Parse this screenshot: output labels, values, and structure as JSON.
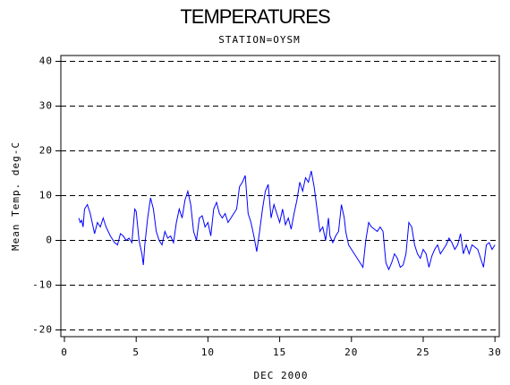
{
  "chart_data": {
    "type": "line",
    "title": "TEMPERATURES",
    "subtitle": "STATION=OYSM",
    "x_label": "DEC 2000",
    "y_label": "Mean Temp. deg-C",
    "xlim": [
      -0.25,
      30.3
    ],
    "ylim": [
      -21.5,
      41.3
    ],
    "xticks": [
      0,
      5,
      10,
      15,
      20,
      25,
      30
    ],
    "yticks": [
      -20,
      -10,
      0,
      10,
      20,
      30,
      40
    ],
    "grid": true,
    "series": [
      {
        "name": "Mean Temp",
        "color": "#0000ff",
        "x": [
          1.0,
          1.1,
          1.2,
          1.3,
          1.4,
          1.6,
          1.8,
          2.0,
          2.1,
          2.3,
          2.5,
          2.7,
          2.9,
          3.2,
          3.5,
          3.7,
          3.9,
          4.1,
          4.3,
          4.5,
          4.7,
          4.9,
          5.0,
          5.2,
          5.4,
          5.5,
          5.6,
          5.8,
          6.0,
          6.2,
          6.4,
          6.6,
          6.8,
          7.0,
          7.2,
          7.4,
          7.6,
          7.8,
          8.0,
          8.2,
          8.4,
          8.6,
          8.8,
          9.0,
          9.2,
          9.4,
          9.6,
          9.8,
          10.0,
          10.2,
          10.4,
          10.6,
          10.8,
          11.0,
          11.2,
          11.4,
          11.6,
          11.8,
          12.0,
          12.2,
          12.4,
          12.6,
          12.8,
          13.0,
          13.2,
          13.4,
          13.6,
          13.8,
          14.0,
          14.2,
          14.4,
          14.6,
          14.8,
          15.0,
          15.2,
          15.4,
          15.6,
          15.8,
          16.0,
          16.2,
          16.4,
          16.6,
          16.8,
          17.0,
          17.2,
          17.4,
          17.6,
          17.8,
          18.0,
          18.2,
          18.4,
          18.5,
          18.7,
          18.9,
          19.1,
          19.3,
          19.5,
          19.6,
          19.8,
          20.0,
          20.2,
          20.4,
          20.6,
          20.8,
          21.0,
          21.2,
          21.4,
          21.6,
          21.8,
          22.0,
          22.2,
          22.4,
          22.6,
          22.8,
          23.0,
          23.2,
          23.4,
          23.6,
          23.8,
          24.0,
          24.2,
          24.4,
          24.6,
          24.8,
          25.0,
          25.2,
          25.4,
          25.6,
          25.8,
          26.0,
          26.2,
          26.4,
          26.6,
          26.8,
          27.0,
          27.2,
          27.4,
          27.6,
          27.8,
          28.0,
          28.2,
          28.4,
          28.6,
          28.8,
          29.0,
          29.2,
          29.4,
          29.6,
          29.8,
          30.0
        ],
        "values": [
          5,
          4,
          4.5,
          3,
          7,
          8,
          6,
          3,
          1.5,
          4,
          3,
          5,
          3,
          1,
          -0.5,
          -1,
          1.5,
          1,
          0,
          0.5,
          -0.5,
          7,
          6.5,
          0,
          -3,
          -5.5,
          -1,
          5,
          9.5,
          7,
          2,
          0,
          -1,
          2,
          0.5,
          1,
          -0.5,
          4,
          7,
          5,
          9,
          11,
          8,
          2,
          0,
          5,
          5.5,
          3,
          4,
          1,
          7,
          8.5,
          6,
          5,
          6,
          4,
          5,
          6,
          7,
          12,
          13,
          14.5,
          6,
          4,
          1,
          -2.5,
          2,
          7,
          11,
          12.5,
          5,
          8,
          6,
          4,
          7,
          3.5,
          5,
          2.5,
          6,
          9,
          13,
          11,
          14,
          13,
          15.5,
          12,
          7,
          2,
          3,
          0,
          5,
          1,
          -0.5,
          1,
          2,
          8,
          5,
          2,
          -1,
          -2,
          -3,
          -4,
          -5,
          -6,
          0,
          4,
          3,
          2.5,
          2,
          3,
          2,
          -5,
          -6.5,
          -5,
          -3,
          -4,
          -6,
          -5.5,
          -3,
          4,
          3,
          -1,
          -3,
          -4,
          -2,
          -3,
          -6,
          -3.5,
          -2,
          -1,
          -3,
          -2,
          -1,
          0.5,
          -0.5,
          -2,
          -1,
          1.5,
          -3,
          -1,
          -3,
          -1,
          -1.5,
          -2,
          -4,
          -6,
          -1,
          -0.5,
          -2,
          -1
        ]
      }
    ]
  }
}
